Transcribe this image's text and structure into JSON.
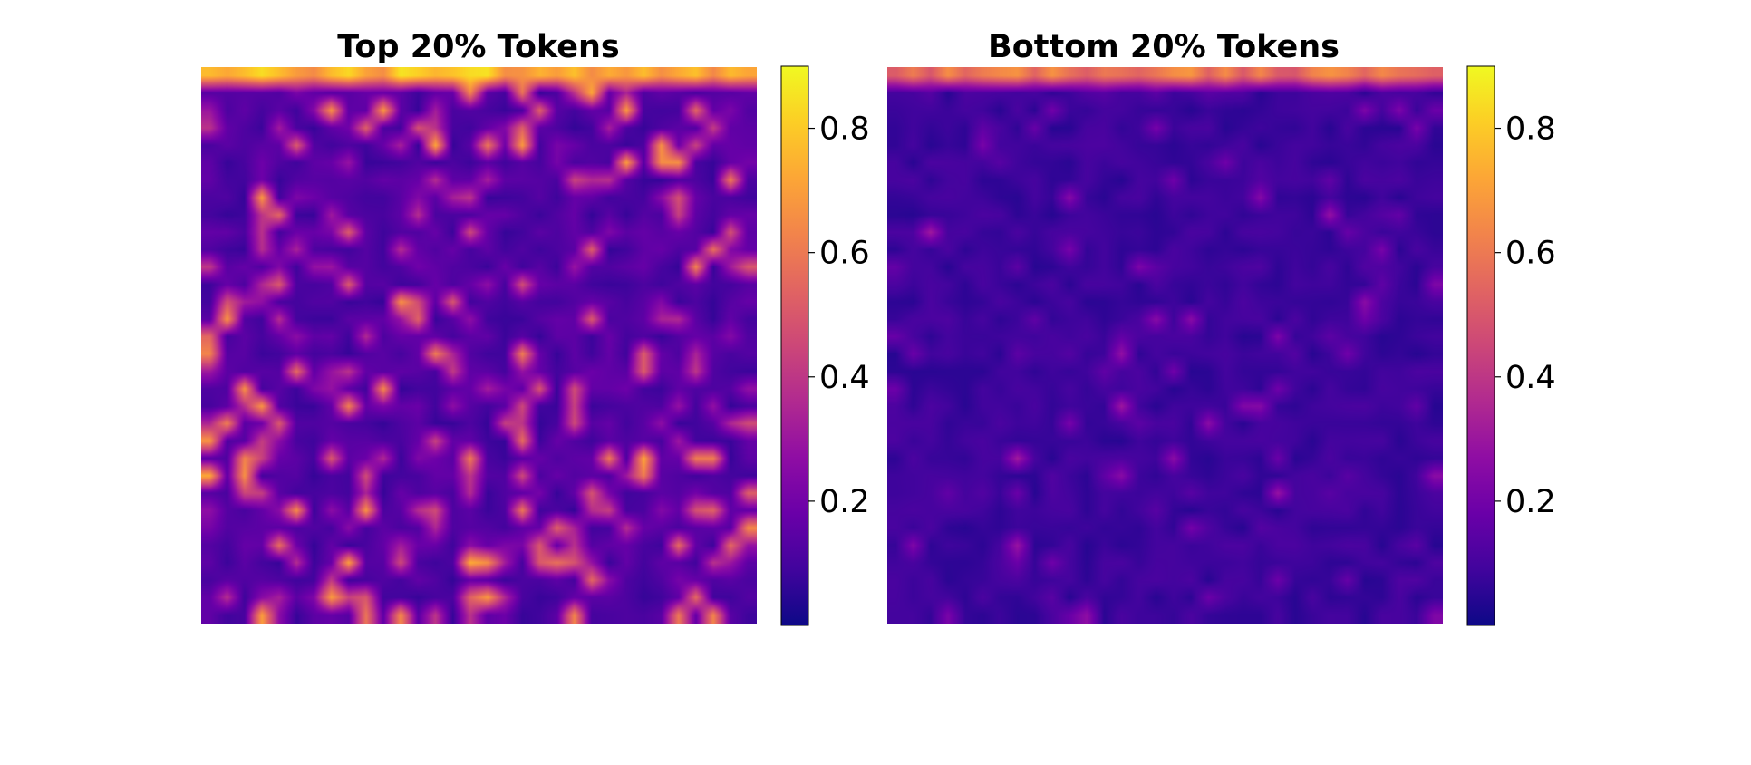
{
  "chart_data": [
    {
      "type": "heatmap",
      "title": "Top 20% Tokens",
      "colormap": "plasma",
      "grid_size": 32,
      "interpolation": "bilinear",
      "axes_visible": false,
      "value_range": [
        0.0,
        0.9
      ],
      "colorbar": {
        "ticks": [
          0.2,
          0.4,
          0.6,
          0.8
        ],
        "labels": [
          "0.2",
          "0.4",
          "0.6",
          "0.8"
        ]
      },
      "pattern": {
        "top_row_mean": 0.78,
        "background_mean": 0.12,
        "hot_spot_max": 0.72,
        "hot_spot_density": 0.3
      }
    },
    {
      "type": "heatmap",
      "title": "Bottom 20% Tokens",
      "colormap": "plasma",
      "grid_size": 32,
      "interpolation": "bilinear",
      "axes_visible": false,
      "value_range": [
        0.0,
        0.9
      ],
      "colorbar": {
        "ticks": [
          0.2,
          0.4,
          0.6,
          0.8
        ],
        "labels": [
          "0.2",
          "0.4",
          "0.6",
          "0.8"
        ]
      },
      "pattern": {
        "top_row_mean": 0.62,
        "background_mean": 0.08,
        "hot_spot_max": 0.3,
        "hot_spot_density": 0.12
      }
    }
  ]
}
